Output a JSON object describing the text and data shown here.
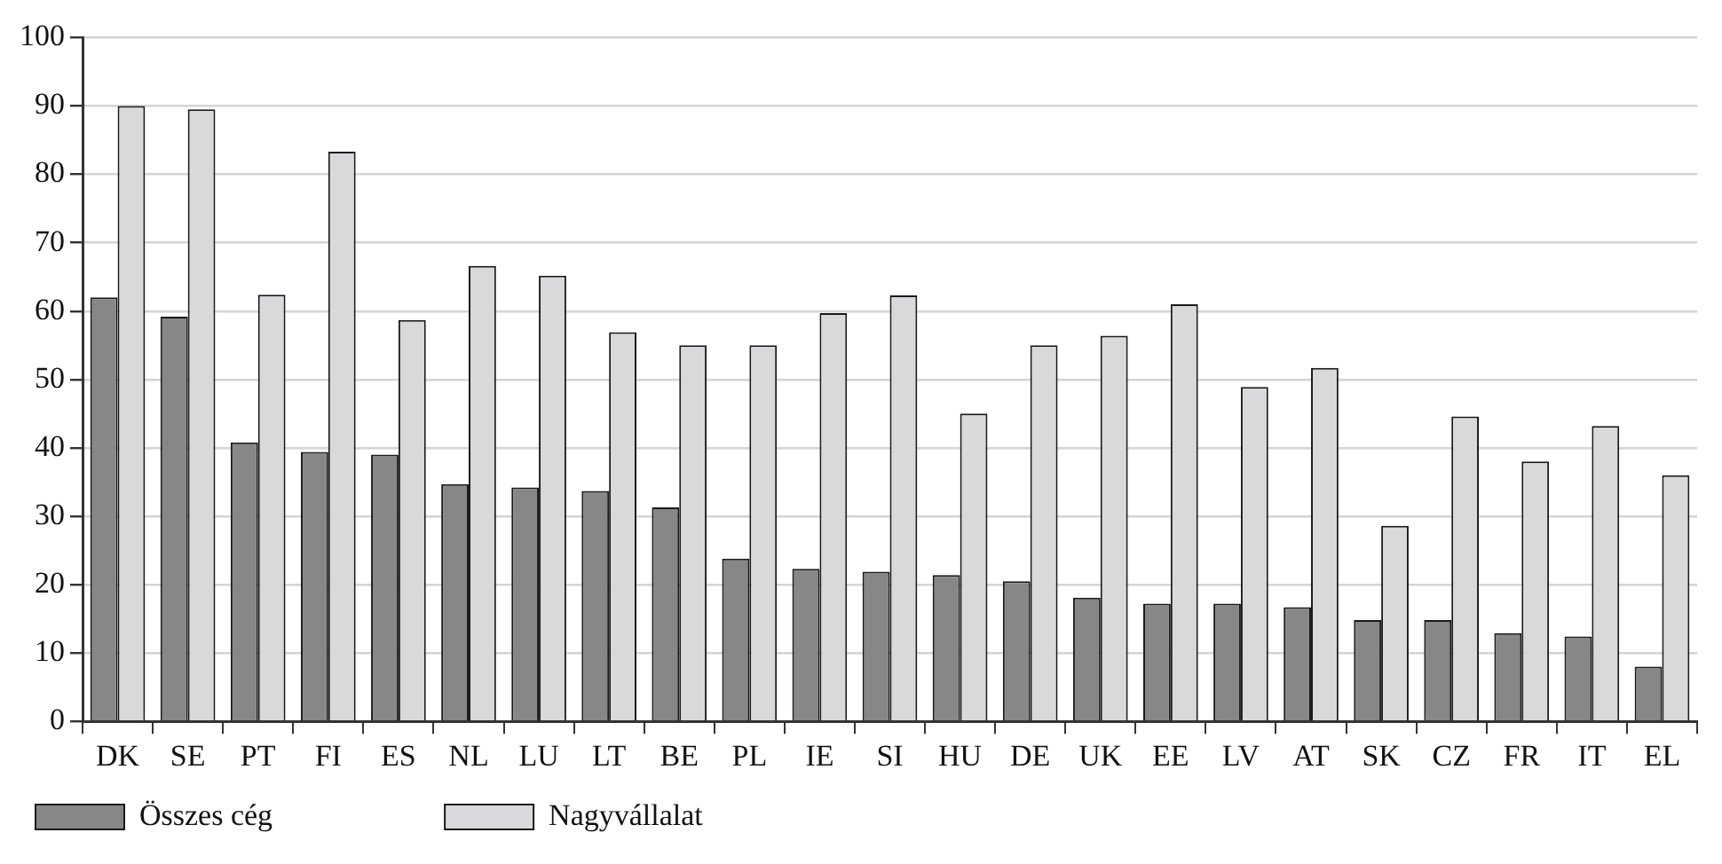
{
  "chart_data": {
    "type": "bar",
    "categories": [
      "DK",
      "SE",
      "PT",
      "FI",
      "ES",
      "NL",
      "LU",
      "LT",
      "BE",
      "PL",
      "IE",
      "SI",
      "HU",
      "DE",
      "UK",
      "EE",
      "LV",
      "AT",
      "SK",
      "CZ",
      "FR",
      "IT",
      "EL"
    ],
    "series": [
      {
        "name": "Összes cég",
        "color": "#878787",
        "values": [
          62,
          59.2,
          40.8,
          39.4,
          39,
          34.7,
          34.2,
          33.7,
          31.3,
          23.8,
          22.3,
          21.9,
          21.4,
          20.5,
          18.1,
          17.2,
          17.2,
          16.7,
          14.8,
          14.8,
          12.9,
          12.4,
          8
        ]
      },
      {
        "name": "Nagyvállalat",
        "color": "#d9d9db",
        "values": [
          90,
          89.5,
          62.4,
          83.3,
          58.7,
          66.6,
          65.2,
          56.9,
          55,
          55,
          59.7,
          62.3,
          45,
          55,
          56.4,
          61,
          48.9,
          51.7,
          28.6,
          44.6,
          38,
          43.2,
          36
        ]
      }
    ],
    "ylim": [
      0,
      100
    ],
    "yticks": [
      0,
      10,
      20,
      30,
      40,
      50,
      60,
      70,
      80,
      90,
      100
    ],
    "grid": "y",
    "legend": "bottom left"
  }
}
